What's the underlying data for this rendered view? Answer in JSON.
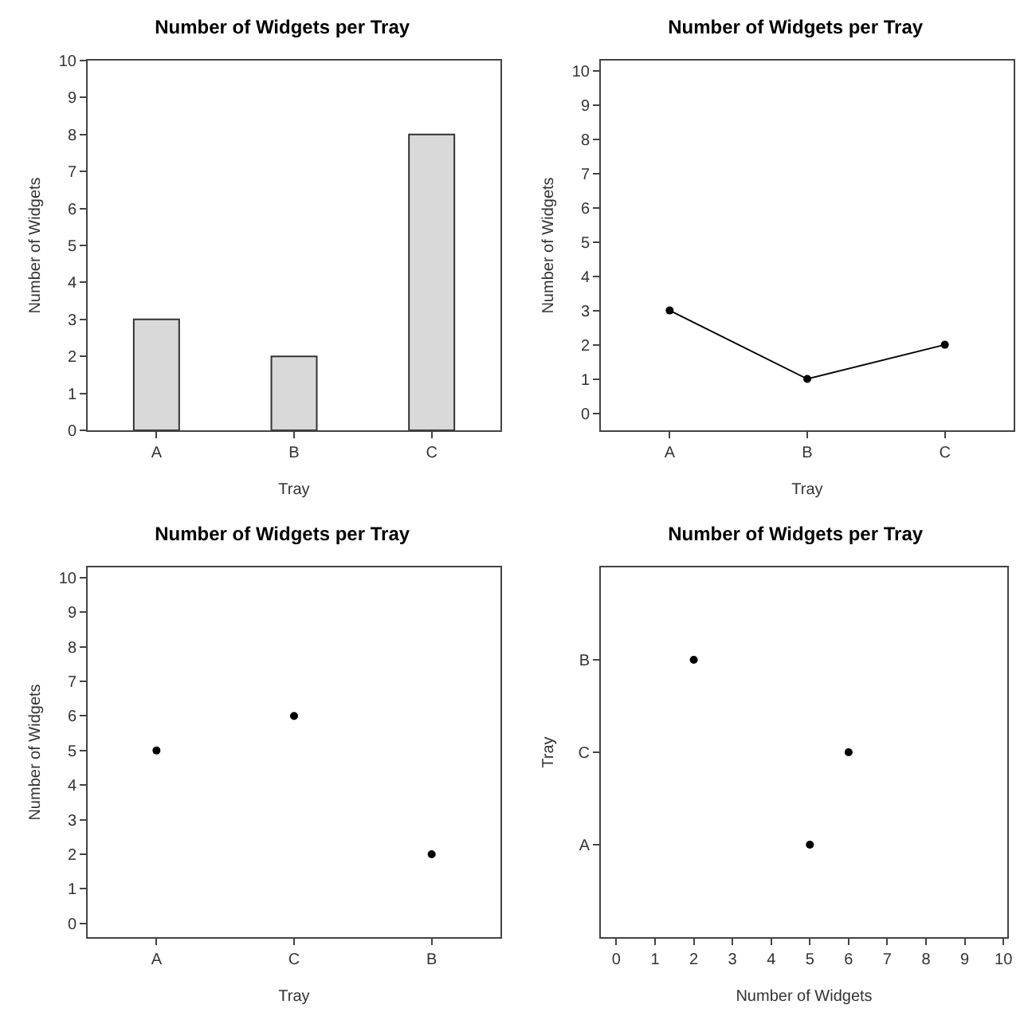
{
  "chart_data": [
    {
      "type": "bar",
      "title": "Number of Widgets per Tray",
      "xlabel": "Tray",
      "ylabel": "Number of Widgets",
      "categories": [
        "A",
        "B",
        "C"
      ],
      "values": [
        3,
        2,
        8
      ],
      "color": "#d9d9d9",
      "ylim": [
        0,
        10
      ],
      "yticks": [
        0,
        1,
        2,
        3,
        4,
        5,
        6,
        7,
        8,
        9,
        10
      ]
    },
    {
      "type": "line",
      "title": "Number of Widgets per Tray",
      "xlabel": "Tray",
      "ylabel": "Number of Widgets",
      "categories": [
        "A",
        "B",
        "C"
      ],
      "values": [
        3,
        1,
        2
      ],
      "color": "#000000",
      "marker": "circle",
      "line_style": "solid",
      "ylim": [
        -0.5,
        10.3
      ],
      "yticks": [
        0,
        1,
        2,
        3,
        4,
        5,
        6,
        7,
        8,
        9,
        10
      ]
    },
    {
      "type": "scatter",
      "title": "Number of Widgets per Tray",
      "xlabel": "Tray",
      "ylabel": "Number of Widgets",
      "categories": [
        "A",
        "C",
        "B"
      ],
      "values": [
        5,
        6,
        2
      ],
      "color": "#000000",
      "marker": "circle",
      "ylim": [
        -0.4,
        10.3
      ],
      "yticks": [
        0,
        1,
        2,
        3,
        4,
        5,
        6,
        7,
        8,
        9,
        10
      ]
    },
    {
      "type": "scatter",
      "orientation": "horizontal",
      "title": "Number of Widgets per Tray",
      "xlabel": "Number of Widgets",
      "ylabel": "Tray",
      "categories": [
        "B",
        "C",
        "A"
      ],
      "values": [
        2,
        6,
        5
      ],
      "color": "#000000",
      "marker": "circle",
      "xlim": [
        -0.4,
        10.1
      ],
      "xticks": [
        0,
        1,
        2,
        3,
        4,
        5,
        6,
        7,
        8,
        9,
        10
      ]
    }
  ]
}
